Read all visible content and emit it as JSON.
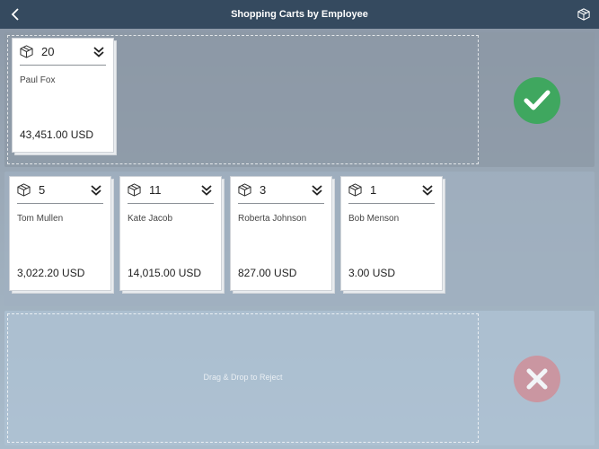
{
  "header": {
    "title": "Shopping Carts by Employee",
    "back_icon": "chevron-left-icon",
    "action_icon": "box-icon"
  },
  "zones": {
    "approve": {
      "status_icon": "checkmark-icon",
      "color": "#3fa75f"
    },
    "reject": {
      "label": "Drag & Drop to Reject",
      "status_icon": "close-icon",
      "color": "#d08f99"
    }
  },
  "approved_carts": [
    {
      "count": "20",
      "name": "Paul Fox",
      "amount": "43,451.00 USD"
    }
  ],
  "pending_carts": [
    {
      "count": "5",
      "name": "Tom Mullen",
      "amount": "3,022.20 USD"
    },
    {
      "count": "11",
      "name": "Kate Jacob",
      "amount": "14,015.00 USD"
    },
    {
      "count": "3",
      "name": "Roberta Johnson",
      "amount": "827.00 USD"
    },
    {
      "count": "1",
      "name": "Bob Menson",
      "amount": "3.00 USD"
    }
  ]
}
